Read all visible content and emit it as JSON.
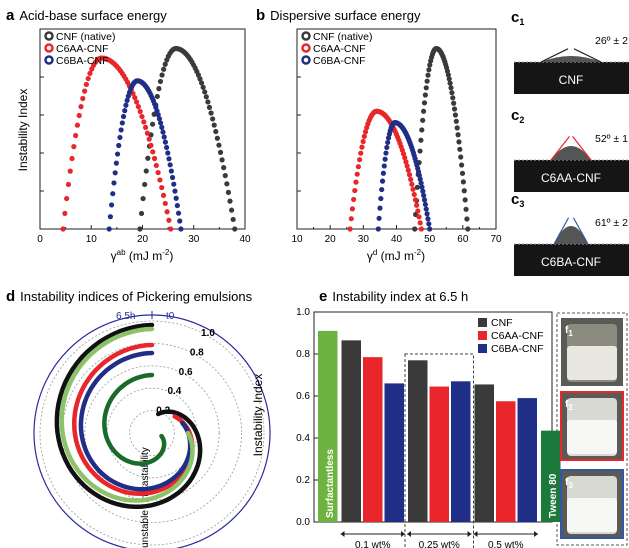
{
  "panels": {
    "a": {
      "letter": "a",
      "title": "Acid-base surface energy"
    },
    "b": {
      "letter": "b",
      "title": "Dispersive surface energy"
    },
    "c": {
      "images": [
        {
          "letter": "c",
          "sub": "1",
          "sample": "CNF",
          "angle": "26º ± 2"
        },
        {
          "letter": "c",
          "sub": "2",
          "sample": "C6AA-CNF",
          "angle": "52º ± 1"
        },
        {
          "letter": "c",
          "sub": "3",
          "sample": "C6BA-CNF",
          "angle": "61º ± 2"
        }
      ]
    },
    "d": {
      "letter": "d",
      "title": "Instability indices of Pickering emulsions"
    },
    "e": {
      "letter": "e",
      "title": "Instability index at 6.5 h"
    },
    "f": {
      "images": [
        {
          "letter": "f",
          "sub": "1"
        },
        {
          "letter": "f",
          "sub": "2"
        },
        {
          "letter": "f",
          "sub": "3"
        }
      ]
    }
  },
  "colors": {
    "CNF": "#3a3a3a",
    "C6AA": "#e8262b",
    "C6BA": "#1f2f88",
    "surf": "#6db33f",
    "tween": "#1a7a3c",
    "polar_blue": "#2a2a9a",
    "green_curve": "#1a6a2a",
    "light_green": "#8cc36a"
  },
  "chart_data": [
    {
      "type": "scatter",
      "xlabel": "γab (mJ m-2)",
      "xlabel_base": "γ",
      "xlabel_sup": "ab",
      "xlabel_unit": " (mJ m",
      "xlabel_unit_sup": "-2",
      "xlabel_close": ")",
      "ylabel": "Instability Index",
      "xlim": [
        0,
        40
      ],
      "xticks": [
        "0",
        "10",
        "20",
        "30",
        "40"
      ],
      "series": [
        {
          "name": "CNF (native)",
          "peak_x": 26.5,
          "peak_y": 0.95,
          "x_start": 19.5,
          "x_end": 38
        },
        {
          "name": "C6AA-CNF",
          "peak_x": 12,
          "peak_y": 0.9,
          "x_start": 4.5,
          "x_end": 25.5
        },
        {
          "name": "C6BA-CNF",
          "peak_x": 19,
          "peak_y": 0.78,
          "x_start": 13.5,
          "x_end": 27.5
        }
      ]
    },
    {
      "type": "scatter",
      "xlabel": "γd (mJ m-2)",
      "xlabel_base": "γ",
      "xlabel_sup": "d",
      "xlabel_unit": " (mJ m",
      "xlabel_unit_sup": "-2",
      "xlabel_close": ")",
      "xlim": [
        10,
        70
      ],
      "xticks": [
        "10",
        "20",
        "30",
        "40",
        "50",
        "60",
        "70"
      ],
      "series": [
        {
          "name": "CNF (native)",
          "peak_x": 52,
          "peak_y": 0.95,
          "x_start": 45.5,
          "x_end": 61.5
        },
        {
          "name": "C6AA-CNF",
          "peak_x": 34,
          "peak_y": 0.62,
          "x_start": 26,
          "x_end": 47.5
        },
        {
          "name": "C6BA-CNF",
          "peak_x": 39.5,
          "peak_y": 0.56,
          "x_start": 34.5,
          "x_end": 50
        }
      ]
    },
    {
      "type": "line",
      "subtype": "polar",
      "rings": [
        "0.2",
        "0.4",
        "0.6",
        "0.8",
        "1.0"
      ],
      "time_labels": [
        "6.5h",
        "t0"
      ],
      "axis_text": [
        "metastability",
        "unstable"
      ]
    },
    {
      "type": "bar",
      "ylabel": "Instability Index",
      "ylim": [
        0,
        1.0
      ],
      "yticks": [
        "0.0",
        "0.2",
        "0.4",
        "0.6",
        "0.8",
        "1.0"
      ],
      "legend": [
        "CNF",
        "C6AA-CNF",
        "C6BA-CNF"
      ],
      "bars": [
        {
          "label": "Surfactantless",
          "value": 0.91,
          "color": "surf"
        },
        {
          "label": "CNF",
          "value": 0.865,
          "color": "CNF",
          "group": "0.1 wt%"
        },
        {
          "label": "C6AA-CNF",
          "value": 0.785,
          "color": "C6AA",
          "group": "0.1 wt%"
        },
        {
          "label": "C6BA-CNF",
          "value": 0.66,
          "color": "C6BA",
          "group": "0.1 wt%"
        },
        {
          "label": "CNF",
          "value": 0.77,
          "color": "CNF",
          "group": "0.25 wt%"
        },
        {
          "label": "C6AA-CNF",
          "value": 0.645,
          "color": "C6AA",
          "group": "0.25 wt%"
        },
        {
          "label": "C6BA-CNF",
          "value": 0.67,
          "color": "C6BA",
          "group": "0.25 wt%"
        },
        {
          "label": "CNF",
          "value": 0.655,
          "color": "CNF",
          "group": "0.5 wt%"
        },
        {
          "label": "C6AA-CNF",
          "value": 0.575,
          "color": "C6AA",
          "group": "0.5 wt%"
        },
        {
          "label": "C6BA-CNF",
          "value": 0.59,
          "color": "C6BA",
          "group": "0.5 wt%"
        },
        {
          "label": "Tween 80",
          "value": 0.435,
          "color": "tween"
        }
      ],
      "groups": [
        "0.1 wt%",
        "0.25 wt%",
        "0.5 wt%"
      ]
    }
  ]
}
